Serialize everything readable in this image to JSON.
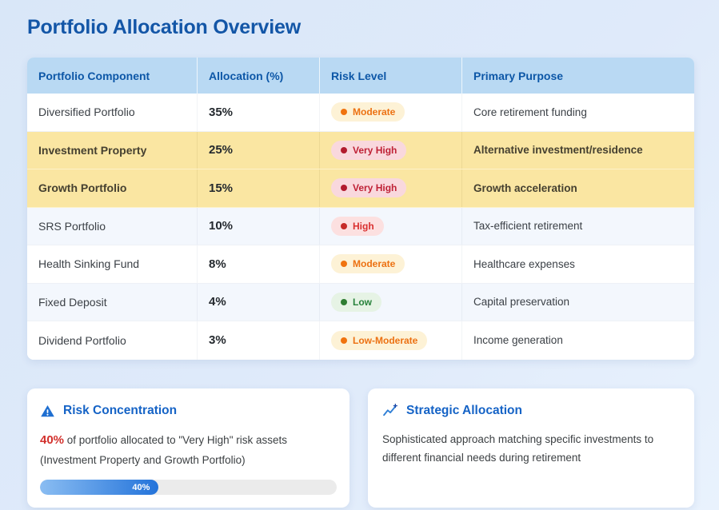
{
  "page": {
    "title": "Portfolio Allocation Overview"
  },
  "table": {
    "headers": [
      "Portfolio Component",
      "Allocation (%)",
      "Risk Level",
      "Primary Purpose"
    ],
    "rows": [
      {
        "component": "Diversified Portfolio",
        "allocation": "35%",
        "risk": "Moderate",
        "purpose": "Core retirement funding",
        "highlight": false
      },
      {
        "component": "Investment Property",
        "allocation": "25%",
        "risk": "Very High",
        "purpose": "Alternative investment/residence",
        "highlight": true
      },
      {
        "component": "Growth Portfolio",
        "allocation": "15%",
        "risk": "Very High",
        "purpose": "Growth acceleration",
        "highlight": true
      },
      {
        "component": "SRS Portfolio",
        "allocation": "10%",
        "risk": "High",
        "purpose": "Tax-efficient retirement",
        "highlight": false
      },
      {
        "component": "Health Sinking Fund",
        "allocation": "8%",
        "risk": "Moderate",
        "purpose": "Healthcare expenses",
        "highlight": false
      },
      {
        "component": "Fixed Deposit",
        "allocation": "4%",
        "risk": "Low",
        "purpose": "Capital preservation",
        "highlight": false
      },
      {
        "component": "Dividend Portfolio",
        "allocation": "3%",
        "risk": "Low-Moderate",
        "purpose": "Income generation",
        "highlight": false
      }
    ]
  },
  "cards": {
    "risk_concentration": {
      "icon": "warning-triangle-icon",
      "title": "Risk Concentration",
      "highlight_value": "40%",
      "description": " of portfolio allocated to \"Very High\" risk assets (Investment Property and Growth Portfolio)",
      "progress_percent": 40,
      "progress_label": "40%"
    },
    "strategic_allocation": {
      "icon": "trending-up-sparkle-icon",
      "title": "Strategic Allocation",
      "description": "Sophisticated approach matching specific investments to different financial needs during retirement"
    }
  },
  "colors": {
    "page_background": "#dce9f9",
    "title_blue": "#1356a7",
    "table_header_bg": "#b9d9f3",
    "table_header_text": "#0d57a7",
    "highlight_row_bg": "#fae6a2",
    "alt_row_bg": "#f3f7fd",
    "card_title_blue": "#1563c6",
    "risk_red": "#d2302c",
    "badge_moderate_text": "#ec7112",
    "badge_very_high_text": "#bf2136",
    "badge_high_text": "#d93030",
    "badge_low_text": "#27823b",
    "progress_track": "#ebebeb",
    "progress_gradient_start": "#8abdf2",
    "progress_gradient_end": "#2373da"
  }
}
